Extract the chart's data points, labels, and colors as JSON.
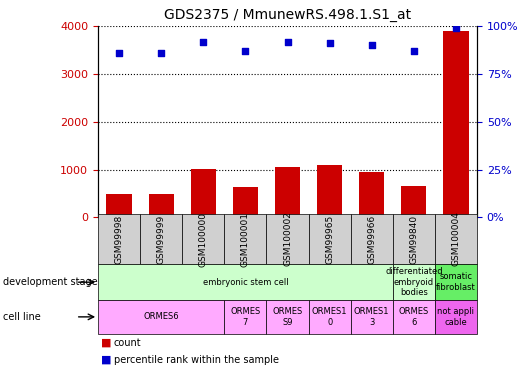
{
  "title": "GDS2375 / MmunewRS.498.1.S1_at",
  "samples": [
    "GSM99998",
    "GSM99999",
    "GSM100000",
    "GSM100001",
    "GSM100002",
    "GSM99965",
    "GSM99966",
    "GSM99840",
    "GSM100004"
  ],
  "counts": [
    500,
    500,
    1020,
    630,
    1050,
    1100,
    960,
    650,
    3900
  ],
  "percentiles": [
    86,
    86,
    92,
    87,
    92,
    91,
    90,
    87,
    99
  ],
  "ylim_left": [
    0,
    4000
  ],
  "ylim_right": [
    0,
    100
  ],
  "yticks_left": [
    0,
    1000,
    2000,
    3000,
    4000
  ],
  "yticks_right": [
    0,
    25,
    50,
    75,
    100
  ],
  "ytick_labels_right": [
    "0%",
    "25%",
    "50%",
    "75%",
    "100%"
  ],
  "bar_color": "#cc0000",
  "dot_color": "#0000cc",
  "grid_color": "#000000",
  "dev_stage_groups": [
    {
      "label": "embryonic stem cell",
      "start": 0,
      "end": 7,
      "color": "#ccffcc"
    },
    {
      "label": "differentiated\nembryoid\nbodies",
      "start": 7,
      "end": 8,
      "color": "#ccffcc"
    },
    {
      "label": "somatic\nfibroblast",
      "start": 8,
      "end": 9,
      "color": "#66ee66"
    }
  ],
  "cell_line_groups": [
    {
      "label": "ORMES6",
      "start": 0,
      "end": 3,
      "color": "#ffaaff"
    },
    {
      "label": "ORMES\n7",
      "start": 3,
      "end": 4,
      "color": "#ffaaff"
    },
    {
      "label": "ORMES\nS9",
      "start": 4,
      "end": 5,
      "color": "#ffaaff"
    },
    {
      "label": "ORMES1\n0",
      "start": 5,
      "end": 6,
      "color": "#ffaaff"
    },
    {
      "label": "ORMES1\n3",
      "start": 6,
      "end": 7,
      "color": "#ffaaff"
    },
    {
      "label": "ORMES\n6",
      "start": 7,
      "end": 8,
      "color": "#ffaaff"
    },
    {
      "label": "not appli\ncable",
      "start": 8,
      "end": 9,
      "color": "#ee66ee"
    }
  ],
  "bg_color": "#ffffff",
  "plot_bg_color": "#ffffff",
  "tick_label_color_left": "#cc0000",
  "tick_label_color_right": "#0000cc",
  "xlabel_bg": "#d0d0d0"
}
